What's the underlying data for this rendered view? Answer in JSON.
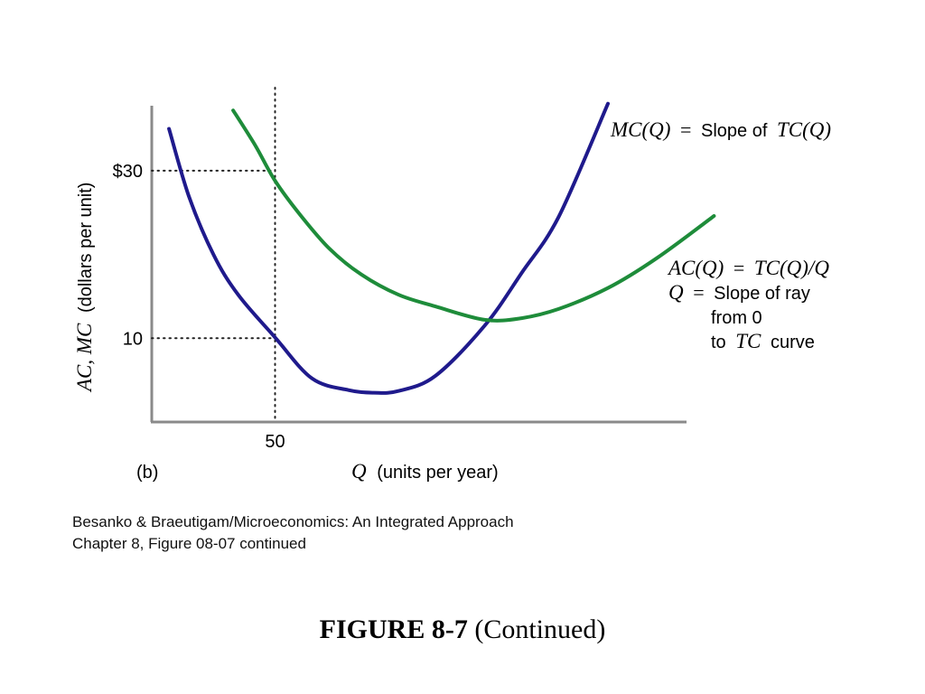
{
  "chart_data": {
    "type": "line",
    "panel_label": "(b)",
    "xlabel_var": "Q",
    "xlabel_rest": "(units per year)",
    "ylabel_var": "AC, MC",
    "ylabel_rest": "(dollars per unit)",
    "x_ticks": [
      {
        "value": 50,
        "label": "50"
      }
    ],
    "y_ticks": [
      {
        "value": 10,
        "label": "10"
      },
      {
        "value": 30,
        "label": "$30"
      }
    ],
    "xlim": [
      0,
      218
    ],
    "ylim": [
      0,
      37.5
    ],
    "grid": false,
    "reference_lines": [
      {
        "type": "vertical",
        "x": 50,
        "style": "dotted"
      },
      {
        "type": "horizontal",
        "y": 30,
        "x_to": 50,
        "style": "dotted"
      },
      {
        "type": "horizontal",
        "y": 10,
        "x_to": 50,
        "style": "dotted"
      }
    ],
    "series": [
      {
        "key": "mc",
        "color": "#1f1a8c",
        "x": [
          7,
          15,
          25,
          35,
          50,
          65,
          80,
          90,
          100,
          115,
          135,
          150,
          165,
          185
        ],
        "y": [
          35,
          27,
          20,
          15.2,
          10.1,
          5.2,
          3.8,
          3.5,
          3.7,
          5.5,
          11.5,
          17.8,
          24.5,
          38
        ]
      },
      {
        "key": "ac",
        "color": "#1e8c3a",
        "x": [
          33,
          42,
          50,
          60,
          72,
          85,
          100,
          115,
          135,
          150,
          165,
          185,
          205,
          228
        ],
        "y": [
          37.2,
          33,
          28.8,
          24.8,
          20.7,
          17.6,
          15.2,
          13.8,
          12.2,
          12.4,
          13.5,
          16,
          19.6,
          24.6
        ]
      }
    ],
    "annotations": {
      "mc": {
        "math": "MC(Q)",
        "eq": "=",
        "text": "Slope of",
        "math2": "TC(Q)"
      },
      "ac": {
        "math": "AC(Q)",
        "eq": "=",
        "math2": "TC(Q)/Q",
        "line2_math": "Q",
        "line2_eq": "=",
        "line2_text": "Slope of ray",
        "line3_text": "from 0",
        "line4_pre": "to",
        "line4_math": "TC",
        "line4_post": "curve"
      }
    }
  },
  "caption": {
    "line1": "Besanko & Braeutigam/Microeconomics: An Integrated Approach",
    "line2": "Chapter 8, Figure 08-07 continued"
  },
  "figure_title": {
    "bold": "FIGURE 8-7",
    "rest": "(Continued)"
  }
}
